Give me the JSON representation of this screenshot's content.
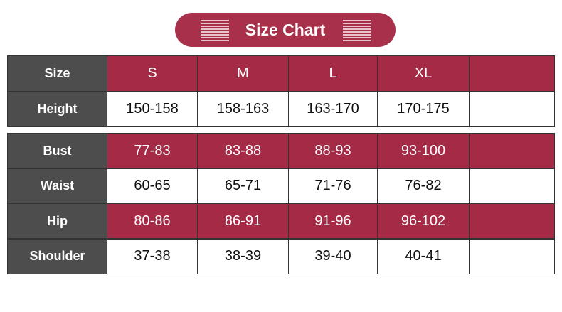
{
  "header": {
    "title": "Size Chart"
  },
  "size_table": {
    "columns": [
      "Size",
      "S",
      "M",
      "L",
      "XL"
    ],
    "rows": [
      [
        "Height",
        "150-158",
        "158-163",
        "163-170",
        "170-175"
      ]
    ]
  },
  "measure_table": {
    "rows": [
      [
        "Bust",
        "77-83",
        "83-88",
        "88-93",
        "93-100"
      ],
      [
        "Waist",
        "60-65",
        "65-71",
        "71-76",
        "76-82"
      ],
      [
        "Hip",
        "80-86",
        "86-91",
        "91-96",
        "96-102"
      ],
      [
        "Shoulder",
        "37-38",
        "38-39",
        "39-40",
        "40-41"
      ]
    ]
  }
}
